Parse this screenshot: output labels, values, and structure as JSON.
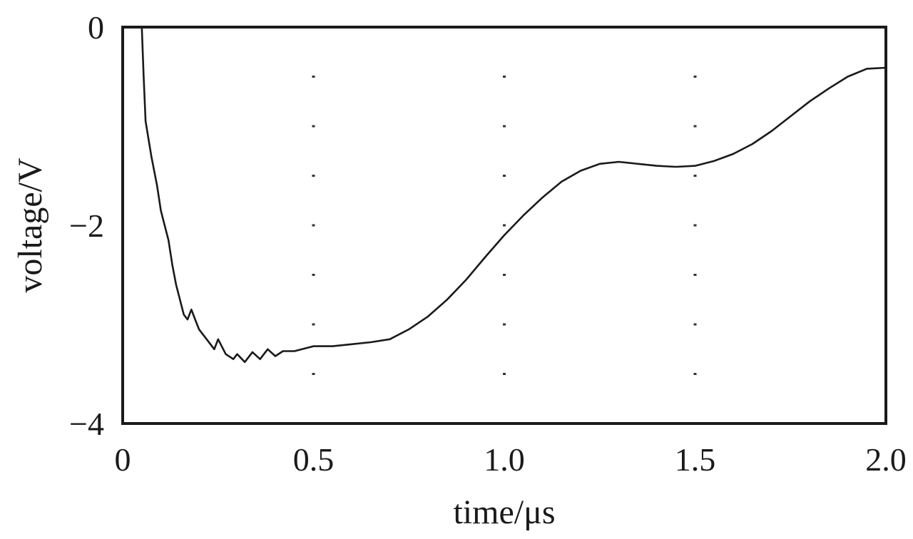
{
  "chart_data": {
    "type": "line",
    "title": "",
    "xlabel": "time/μs",
    "ylabel": "voltage/V",
    "xlim": [
      0,
      2.0
    ],
    "ylim": [
      -4,
      0
    ],
    "x_ticks": [
      {
        "value": 0,
        "label": "0"
      },
      {
        "value": 0.5,
        "label": "0.5"
      },
      {
        "value": 1.0,
        "label": "1.0"
      },
      {
        "value": 1.5,
        "label": "1.5"
      },
      {
        "value": 2.0,
        "label": "2.0"
      }
    ],
    "y_ticks": [
      {
        "value": 0,
        "label": "0"
      },
      {
        "value": -2,
        "label": "−2"
      },
      {
        "value": -4,
        "label": "−4"
      }
    ],
    "grid": "dotted",
    "legend": "none",
    "series": [
      {
        "color": "#1a1a1a",
        "points": [
          [
            0.05,
            0.0
          ],
          [
            0.055,
            -0.5
          ],
          [
            0.06,
            -0.95
          ],
          [
            0.075,
            -1.3
          ],
          [
            0.09,
            -1.6
          ],
          [
            0.1,
            -1.85
          ],
          [
            0.11,
            -2.0
          ],
          [
            0.12,
            -2.15
          ],
          [
            0.13,
            -2.4
          ],
          [
            0.14,
            -2.6
          ],
          [
            0.15,
            -2.75
          ],
          [
            0.16,
            -2.9
          ],
          [
            0.17,
            -2.95
          ],
          [
            0.18,
            -2.85
          ],
          [
            0.19,
            -2.95
          ],
          [
            0.2,
            -3.05
          ],
          [
            0.22,
            -3.15
          ],
          [
            0.24,
            -3.25
          ],
          [
            0.25,
            -3.15
          ],
          [
            0.27,
            -3.3
          ],
          [
            0.29,
            -3.35
          ],
          [
            0.3,
            -3.3
          ],
          [
            0.32,
            -3.38
          ],
          [
            0.34,
            -3.28
          ],
          [
            0.36,
            -3.35
          ],
          [
            0.38,
            -3.25
          ],
          [
            0.4,
            -3.32
          ],
          [
            0.42,
            -3.27
          ],
          [
            0.45,
            -3.27
          ],
          [
            0.48,
            -3.24
          ],
          [
            0.5,
            -3.22
          ],
          [
            0.55,
            -3.22
          ],
          [
            0.6,
            -3.2
          ],
          [
            0.65,
            -3.18
          ],
          [
            0.7,
            -3.15
          ],
          [
            0.75,
            -3.05
          ],
          [
            0.8,
            -2.92
          ],
          [
            0.85,
            -2.75
          ],
          [
            0.9,
            -2.55
          ],
          [
            0.95,
            -2.32
          ],
          [
            1.0,
            -2.1
          ],
          [
            1.05,
            -1.9
          ],
          [
            1.1,
            -1.72
          ],
          [
            1.15,
            -1.56
          ],
          [
            1.2,
            -1.45
          ],
          [
            1.25,
            -1.38
          ],
          [
            1.3,
            -1.36
          ],
          [
            1.35,
            -1.38
          ],
          [
            1.4,
            -1.4
          ],
          [
            1.45,
            -1.41
          ],
          [
            1.5,
            -1.4
          ],
          [
            1.55,
            -1.35
          ],
          [
            1.6,
            -1.28
          ],
          [
            1.65,
            -1.18
          ],
          [
            1.7,
            -1.05
          ],
          [
            1.75,
            -0.9
          ],
          [
            1.8,
            -0.75
          ],
          [
            1.85,
            -0.62
          ],
          [
            1.9,
            -0.5
          ],
          [
            1.95,
            -0.42
          ],
          [
            2.0,
            -0.41
          ]
        ]
      }
    ]
  }
}
